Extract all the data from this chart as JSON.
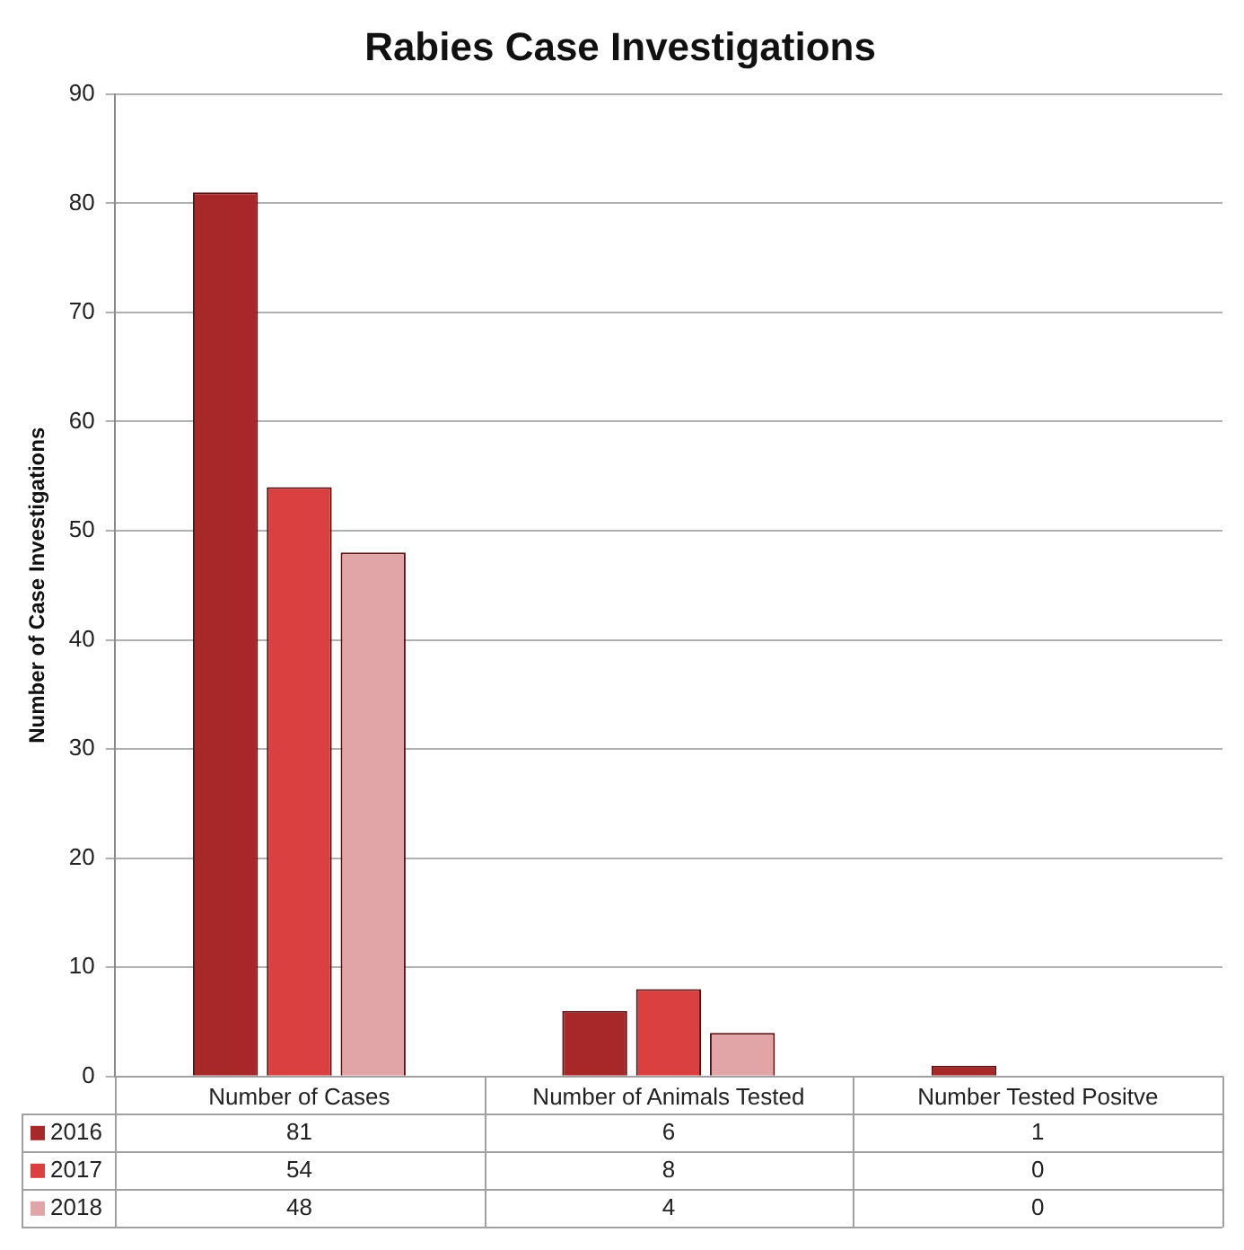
{
  "chart_data": {
    "type": "bar",
    "title": "Rabies Case Investigations",
    "ylabel": "Number of Case Investigations",
    "categories": [
      "Number of Cases",
      "Number of Animals Tested",
      "Number Tested Positve"
    ],
    "series": [
      {
        "name": "2016",
        "color": "#a8282a",
        "values": [
          81,
          6,
          1
        ]
      },
      {
        "name": "2017",
        "color": "#d9403f",
        "values": [
          54,
          8,
          0
        ]
      },
      {
        "name": "2018",
        "color": "#e2a5a7",
        "values": [
          48,
          4,
          0
        ]
      }
    ],
    "ylim": [
      0,
      90
    ],
    "yticks": [
      0,
      10,
      20,
      30,
      40,
      50,
      60,
      70,
      80,
      90
    ],
    "grid": "y",
    "legend": "bottom",
    "data_labels": true
  }
}
